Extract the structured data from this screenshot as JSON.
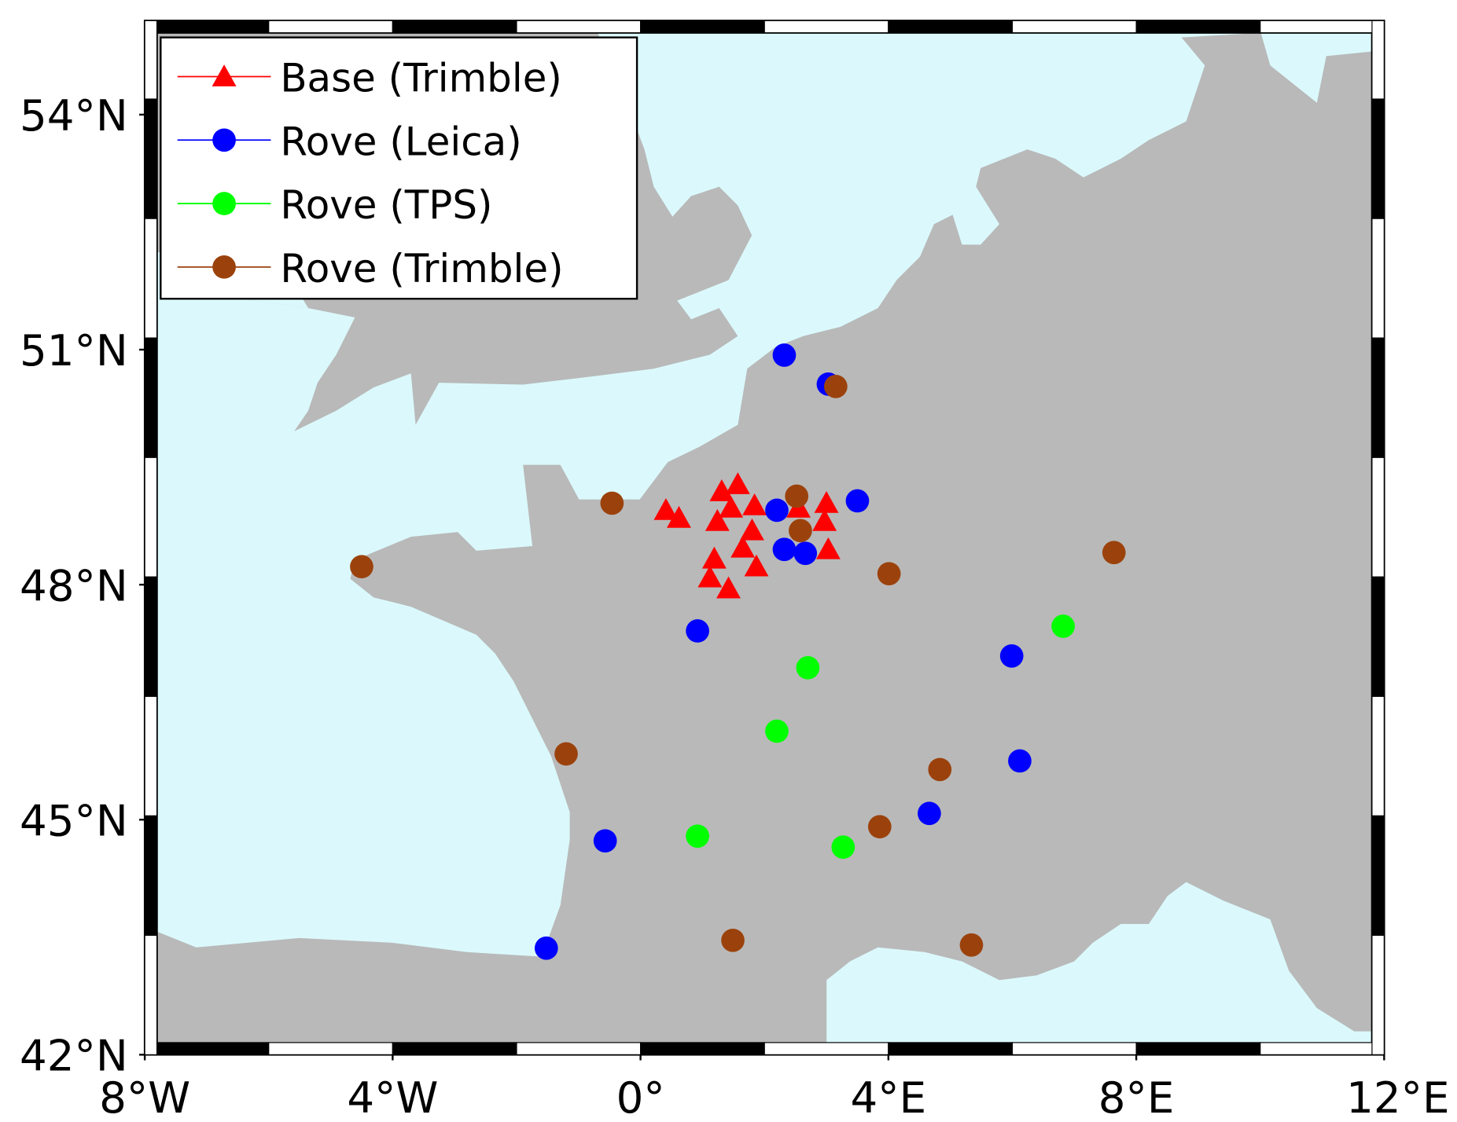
{
  "chart_data": {
    "type": "scatter",
    "xlim": [
      -8,
      12
    ],
    "ylim": [
      42,
      55.2
    ],
    "xticks": [
      {
        "value": -8,
        "label": "8°W"
      },
      {
        "value": -4,
        "label": "4°W"
      },
      {
        "value": 0,
        "label": "0°"
      },
      {
        "value": 4,
        "label": "4°E"
      },
      {
        "value": 8,
        "label": "8°E"
      },
      {
        "value": 12,
        "label": "12°E"
      }
    ],
    "yticks": [
      {
        "value": 42,
        "label": "42°N"
      },
      {
        "value": 45,
        "label": "45°N"
      },
      {
        "value": 48,
        "label": "48°N"
      },
      {
        "value": 51,
        "label": "51°N"
      },
      {
        "value": 54,
        "label": "54°N"
      }
    ],
    "legend": "upper left",
    "series": [
      {
        "name": "Base (Trimble)",
        "color": "#ff0000",
        "marker": "triangle",
        "x": [
          0.41,
          0.62,
          1.31,
          1.57,
          1.46,
          1.84,
          1.24,
          1.8,
          1.65,
          1.19,
          1.87,
          1.12,
          1.42,
          2.55,
          3.0,
          2.97,
          3.03
        ],
        "values": [
          48.95,
          48.85,
          49.19,
          49.28,
          48.98,
          49.01,
          48.81,
          48.69,
          48.47,
          48.33,
          48.23,
          48.09,
          47.95,
          48.98,
          49.04,
          48.81,
          48.45
        ]
      },
      {
        "name": "Rove (Leica)",
        "color": "#0000ff",
        "marker": "circle",
        "x": [
          2.32,
          3.03,
          3.5,
          2.2,
          2.32,
          2.66,
          0.92,
          5.99,
          6.12,
          4.66,
          -0.57,
          -1.52
        ],
        "values": [
          50.93,
          50.56,
          49.07,
          48.95,
          48.45,
          48.4,
          47.41,
          47.09,
          45.75,
          45.08,
          44.73,
          43.36
        ]
      },
      {
        "name": "Rove (TPS)",
        "color": "#00ff00",
        "marker": "circle",
        "x": [
          6.82,
          2.7,
          2.2,
          0.92,
          3.27
        ],
        "values": [
          47.47,
          46.94,
          46.13,
          44.79,
          44.65
        ]
      },
      {
        "name": "Rove (Trimble)",
        "color": "#9b420c",
        "marker": "circle",
        "x": [
          3.15,
          -0.46,
          2.52,
          2.58,
          4.01,
          -4.5,
          7.64,
          -1.2,
          4.83,
          3.86,
          1.49,
          5.34
        ],
        "values": [
          50.53,
          49.04,
          49.13,
          48.69,
          48.14,
          48.23,
          48.41,
          45.84,
          45.64,
          44.91,
          43.46,
          43.4
        ]
      }
    ]
  }
}
